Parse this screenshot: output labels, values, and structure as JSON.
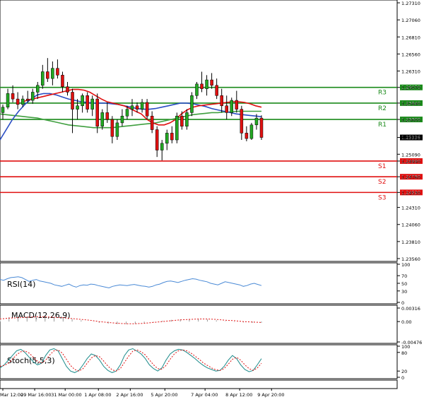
{
  "chart_data": {
    "type": "candlestick",
    "main": {
      "ylim": [
        1.2356,
        1.2731
      ],
      "yticks": [
        "1.27310",
        "1.27060",
        "1.26810",
        "1.26560",
        "1.26310",
        "1.26070",
        "1.25840",
        "1.25600",
        "1.25336",
        "1.25090",
        "1.24990",
        "1.24760",
        "1.24530",
        "1.24310",
        "1.24060",
        "1.23810",
        "1.23560"
      ],
      "yticks_values": [
        1.2731,
        1.2706,
        1.2681,
        1.2656,
        1.2631,
        1.2607,
        1.2584,
        1.256,
        1.25336,
        1.2509,
        1.2499,
        1.2476,
        1.2453,
        1.2431,
        1.2406,
        1.2381,
        1.2356
      ],
      "last_price": "1.25336",
      "last_value": 1.25336,
      "levels": [
        {
          "label": "R3",
          "price": "1.26070",
          "value": 1.2607,
          "color": "#1a8a1a"
        },
        {
          "label": "R2",
          "price": "1.25840",
          "value": 1.2584,
          "color": "#1a8a1a"
        },
        {
          "label": "R1",
          "price": "1.25600",
          "value": 1.256,
          "color": "#1a8a1a"
        },
        {
          "label": "S1",
          "price": "1.24990",
          "value": 1.2499,
          "color": "#e01010"
        },
        {
          "label": "S2",
          "price": "1.24760",
          "value": 1.2476,
          "color": "#e01010"
        },
        {
          "label": "S3",
          "price": "1.24530",
          "value": 1.2453,
          "color": "#e01010"
        }
      ],
      "candles": [
        [
          1.257,
          1.2582,
          1.256,
          1.2578
        ],
        [
          1.2578,
          1.2605,
          1.2575,
          1.2598
        ],
        [
          1.2598,
          1.261,
          1.2585,
          1.259
        ],
        [
          1.259,
          1.26,
          1.2575,
          1.2582
        ],
        [
          1.2582,
          1.2595,
          1.2578,
          1.259
        ],
        [
          1.259,
          1.2602,
          1.2585,
          1.2588
        ],
        [
          1.2588,
          1.2605,
          1.2583,
          1.26
        ],
        [
          1.26,
          1.2615,
          1.259,
          1.261
        ],
        [
          1.261,
          1.264,
          1.2605,
          1.263
        ],
        [
          1.263,
          1.265,
          1.2615,
          1.262
        ],
        [
          1.262,
          1.2645,
          1.261,
          1.2635
        ],
        [
          1.2635,
          1.2648,
          1.262,
          1.2625
        ],
        [
          1.2625,
          1.263,
          1.26,
          1.2608
        ],
        [
          1.2608,
          1.2615,
          1.2595,
          1.26
        ],
        [
          1.26,
          1.2605,
          1.254,
          1.2575
        ],
        [
          1.2575,
          1.259,
          1.256,
          1.258
        ],
        [
          1.258,
          1.2598,
          1.257,
          1.2595
        ],
        [
          1.2595,
          1.26,
          1.257,
          1.2575
        ],
        [
          1.2575,
          1.2595,
          1.2565,
          1.259
        ],
        [
          1.259,
          1.2598,
          1.254,
          1.255
        ],
        [
          1.255,
          1.2575,
          1.2545,
          1.257
        ],
        [
          1.257,
          1.2585,
          1.2555,
          1.256
        ],
        [
          1.256,
          1.2565,
          1.2525,
          1.2535
        ],
        [
          1.2535,
          1.256,
          1.253,
          1.2555
        ],
        [
          1.2555,
          1.2575,
          1.255,
          1.2565
        ],
        [
          1.2565,
          1.258,
          1.256,
          1.2575
        ],
        [
          1.2575,
          1.259,
          1.2565,
          1.258
        ],
        [
          1.258,
          1.2585,
          1.257,
          1.2575
        ],
        [
          1.2575,
          1.259,
          1.257,
          1.2585
        ],
        [
          1.2585,
          1.259,
          1.256,
          1.2565
        ],
        [
          1.2565,
          1.2572,
          1.254,
          1.2545
        ],
        [
          1.2545,
          1.255,
          1.2505,
          1.2515
        ],
        [
          1.2515,
          1.253,
          1.25,
          1.2525
        ],
        [
          1.2525,
          1.2545,
          1.2515,
          1.254
        ],
        [
          1.254,
          1.255,
          1.2525,
          1.253
        ],
        [
          1.253,
          1.257,
          1.2525,
          1.2565
        ],
        [
          1.2565,
          1.2572,
          1.2545,
          1.255
        ],
        [
          1.255,
          1.2575,
          1.2545,
          1.257
        ],
        [
          1.257,
          1.26,
          1.2565,
          1.2595
        ],
        [
          1.2595,
          1.2615,
          1.259,
          1.2612
        ],
        [
          1.2612,
          1.263,
          1.26,
          1.2605
        ],
        [
          1.2605,
          1.2625,
          1.2595,
          1.2618
        ],
        [
          1.2618,
          1.2628,
          1.2605,
          1.261
        ],
        [
          1.261,
          1.262,
          1.259,
          1.2595
        ],
        [
          1.2595,
          1.2605,
          1.257,
          1.258
        ],
        [
          1.258,
          1.2595,
          1.256,
          1.257
        ],
        [
          1.257,
          1.2592,
          1.2565,
          1.2588
        ],
        [
          1.2588,
          1.2602,
          1.257,
          1.2575
        ],
        [
          1.2575,
          1.258,
          1.253,
          1.254
        ],
        [
          1.254,
          1.255,
          1.2528,
          1.2532
        ],
        [
          1.2532,
          1.2555,
          1.253,
          1.2552
        ],
        [
          1.2552,
          1.2568,
          1.2545,
          1.2562
        ],
        [
          1.2562,
          1.2566,
          1.253,
          1.25336
        ]
      ],
      "ma_red": [
        1.2585,
        1.2588,
        1.259,
        1.2592,
        1.2594,
        1.2596,
        1.2598,
        1.26,
        1.2602,
        1.2604,
        1.2604,
        1.2603,
        1.26,
        1.2595,
        1.259,
        1.2586,
        1.2584,
        1.2582,
        1.258,
        1.2576,
        1.2572,
        1.2568,
        1.256,
        1.2555,
        1.2552,
        1.2552,
        1.2555,
        1.256,
        1.2568,
        1.2574,
        1.2578,
        1.258,
        1.2581,
        1.2582,
        1.2583,
        1.2584,
        1.2585,
        1.2586,
        1.2586,
        1.2585,
        1.2583,
        1.258,
        1.2578
      ],
      "ma_blue": [
        1.253,
        1.2545,
        1.256,
        1.2572,
        1.2582,
        1.259,
        1.2596,
        1.2598,
        1.2598,
        1.2596,
        1.2593,
        1.259,
        1.2588,
        1.2586,
        1.2585,
        1.2584,
        1.2584,
        1.2584,
        1.2583,
        1.2582,
        1.258,
        1.2578,
        1.2576,
        1.2575,
        1.2575,
        1.2576,
        1.2578,
        1.258,
        1.2582,
        1.2584,
        1.2584,
        1.2583,
        1.2581,
        1.2579,
        1.2576,
        1.2574,
        1.2572,
        1.257,
        1.2568,
        1.2567,
        1.2566,
        1.2565,
        1.2564
      ],
      "ma_green": [
        1.2568,
        1.2567,
        1.2566,
        1.2565,
        1.2564,
        1.2563,
        1.2562,
        1.256,
        1.2558,
        1.2556,
        1.2554,
        1.2552,
        1.2551,
        1.255,
        1.2549,
        1.2548,
        1.2548,
        1.2548,
        1.2548,
        1.2549,
        1.255,
        1.2551,
        1.2552,
        1.2553,
        1.2554,
        1.2555,
        1.2557,
        1.2559,
        1.2561,
        1.2563,
        1.2565,
        1.2567,
        1.2568,
        1.2569,
        1.257,
        1.257,
        1.2571,
        1.2571,
        1.2572,
        1.2572,
        1.2572,
        1.2572,
        1.2572
      ]
    },
    "rsi": {
      "label": "RSI(14)",
      "ylim": [
        0,
        100
      ],
      "yticks": [
        "100",
        "70",
        "50",
        "30",
        "0"
      ],
      "yticks_values": [
        100,
        70,
        50,
        30,
        0
      ],
      "values": [
        60,
        58,
        62,
        65,
        66,
        67,
        65,
        60,
        55,
        58,
        60,
        56,
        54,
        52,
        50,
        46,
        44,
        42,
        45,
        48,
        43,
        40,
        44,
        46,
        45,
        48,
        47,
        44,
        42,
        40,
        38,
        42,
        44,
        46,
        45,
        44,
        46,
        47,
        45,
        43,
        42,
        40,
        42,
        46,
        48,
        52,
        55,
        56,
        54,
        52,
        55,
        58,
        60,
        62,
        61,
        58,
        56,
        54,
        50,
        48,
        46,
        50,
        54,
        52,
        50,
        48,
        46,
        42,
        44,
        48,
        50,
        47,
        44
      ]
    },
    "macd": {
      "label": "MACD(12,26,9)",
      "ylim": [
        -0.00476,
        0.00316
      ],
      "yticks": [
        "0.00316",
        "0.00",
        "-0.00476"
      ],
      "yticks_values": [
        0.00316,
        0.0,
        -0.00476
      ],
      "hist": [
        0.0008,
        0.001,
        0.0011,
        0.0012,
        0.0013,
        0.0012,
        0.0011,
        0.0009,
        0.0006,
        0.0003,
        0.0,
        -0.0003,
        -0.0005,
        -0.0006,
        -0.0006,
        -0.0005,
        -0.0003,
        -0.0001,
        0.0002,
        0.0004,
        0.0005,
        0.0006,
        0.0006,
        0.0005,
        0.0003,
        0.0001,
        -0.0001,
        -0.0002,
        -0.0003,
        -0.0003
      ],
      "signal": [
        0.0006,
        0.0008,
        0.0009,
        0.001,
        0.0011,
        0.0011,
        0.001,
        0.0009,
        0.0007,
        0.0005,
        0.0003,
        0.0,
        -0.0002,
        -0.0004,
        -0.0005,
        -0.0005,
        -0.0004,
        -0.0002,
        0.0,
        0.0002,
        0.0004,
        0.0005,
        0.0006,
        0.0006,
        0.0005,
        0.0003,
        0.0002,
        0.0,
        -0.0001,
        -0.0002
      ]
    },
    "stoch": {
      "label": "Stoch(5,5,3)",
      "ylim": [
        0,
        100
      ],
      "yticks": [
        "100",
        "80",
        "20",
        "0"
      ],
      "yticks_values": [
        100,
        80,
        20,
        0
      ],
      "k": [
        30,
        40,
        55,
        70,
        85,
        90,
        80,
        65,
        50,
        40,
        45,
        70,
        88,
        92,
        85,
        60,
        35,
        20,
        15,
        22,
        40,
        60,
        75,
        70,
        55,
        35,
        22,
        15,
        20,
        40,
        70,
        88,
        92,
        84,
        75,
        60,
        40,
        28,
        20,
        30,
        55,
        75,
        85,
        90,
        88,
        80,
        70,
        60,
        48,
        38,
        30,
        25,
        20,
        22,
        35,
        55,
        70,
        60,
        40,
        25,
        18,
        22,
        40,
        60
      ],
      "d": [
        35,
        38,
        45,
        58,
        72,
        82,
        85,
        78,
        65,
        52,
        46,
        55,
        72,
        85,
        88,
        78,
        58,
        38,
        25,
        20,
        28,
        45,
        62,
        70,
        66,
        52,
        36,
        24,
        20,
        28,
        48,
        68,
        84,
        88,
        82,
        72,
        56,
        40,
        28,
        26,
        38,
        58,
        75,
        85,
        88,
        85,
        78,
        68,
        58,
        46,
        38,
        30,
        24,
        22,
        28,
        42,
        58,
        64,
        55,
        40,
        28,
        22,
        30,
        45
      ]
    },
    "xaxis": {
      "labels": [
        "Mar 12:00",
        "29 Mar 16:00",
        "31 Mar 00:00",
        "1 Apr 08:00",
        "2 Apr 16:00",
        "5 Apr 20:00",
        "7 Apr 04:00",
        "8 Apr 12:00",
        "9 Apr 20:00"
      ],
      "positions": [
        0.0,
        0.115,
        0.225,
        0.345,
        0.46,
        0.585,
        0.73,
        0.855,
        0.97
      ]
    },
    "colors": {
      "up_body": "#22a822",
      "down_body": "#e01010",
      "wick": "#000000",
      "ma_red": "#e01010",
      "ma_blue": "#2b4ec4",
      "ma_green": "#3f9f3f",
      "rsi_line": "#4a8ad6",
      "macd_hist": "#9a9a9a",
      "macd_signal": "#e01010",
      "stoch_k": "#1a8a8a",
      "stoch_d": "#e01010"
    }
  }
}
